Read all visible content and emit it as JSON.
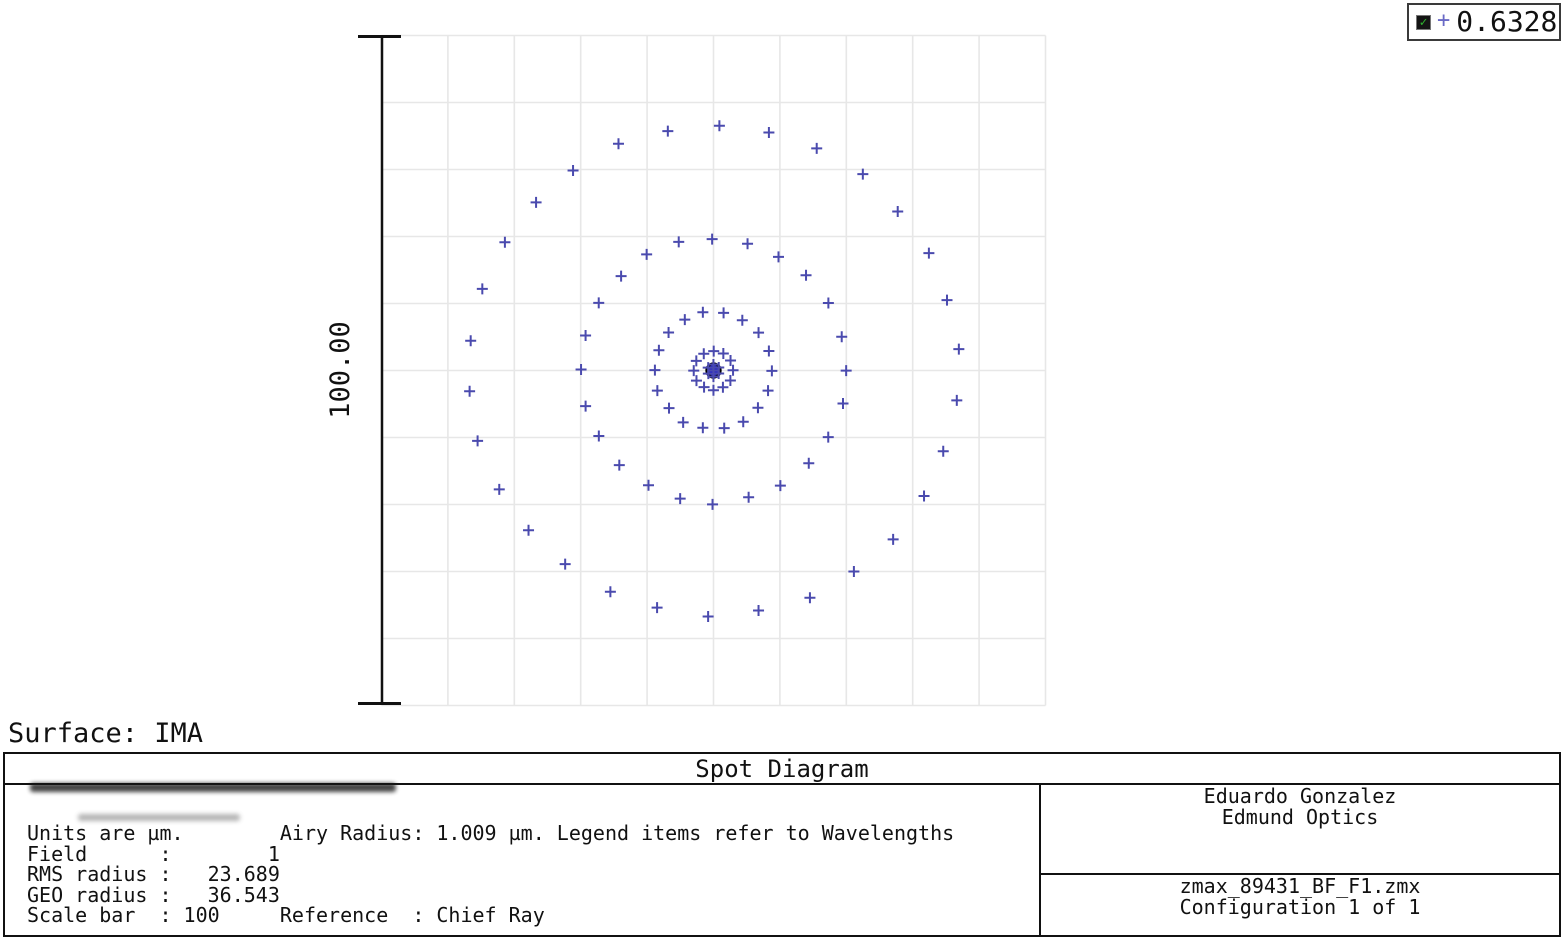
{
  "legend": {
    "marker_glyph": "+",
    "wavelength_label": "0.6328",
    "checkbox_checked": true
  },
  "plot": {
    "surface_heading": "Surface: IMA"
  },
  "footer": {
    "title": "Spot Diagram",
    "info_lines": [
      "Units are µm.        Airy Radius: 1.009 µm. Legend items refer to Wavelengths",
      "Field      :        1",
      "RMS radius :   23.689",
      "GEO radius :   36.543",
      "Scale bar  : 100     Reference  : Chief Ray"
    ],
    "author_line1": "Eduardo Gonzalez",
    "author_line2": "Edmund Optics",
    "file_line1": "zmax_89431_BF_F1.zmx",
    "file_line2": "Configuration 1 of 1"
  },
  "chart_data": {
    "type": "scatter",
    "title": "Spot Diagram",
    "units": "µm",
    "surface": "IMA",
    "field": 1,
    "wavelength_um": 0.6328,
    "airy_radius_um": 1.009,
    "rms_radius_um": 23.689,
    "geo_radius_um": 36.543,
    "scale_bar_um": 100,
    "scale_label": "100.00",
    "reference": "Chief Ray",
    "grid": {
      "rows": 10,
      "cols": 10,
      "cell_um": 10,
      "color": "#e7e7e7"
    },
    "marker_color": "#4a4aae",
    "airy_fill": "#2323c8",
    "airy_stroke": "#000000",
    "pattern": "hexapolar",
    "chief_ray_at_center": true,
    "rings": [
      {
        "radius_um": 36.54,
        "points": 30,
        "offset_deg": 88.8
      },
      {
        "radius_um": 19.8,
        "points": 24,
        "offset_deg": 90
      },
      {
        "radius_um": 8.8,
        "points": 18,
        "offset_deg": 80
      },
      {
        "radius_um": 2.91,
        "points": 12,
        "offset_deg": 90
      },
      {
        "radius_um": 0.9,
        "points": 6,
        "offset_deg": 90
      }
    ]
  }
}
